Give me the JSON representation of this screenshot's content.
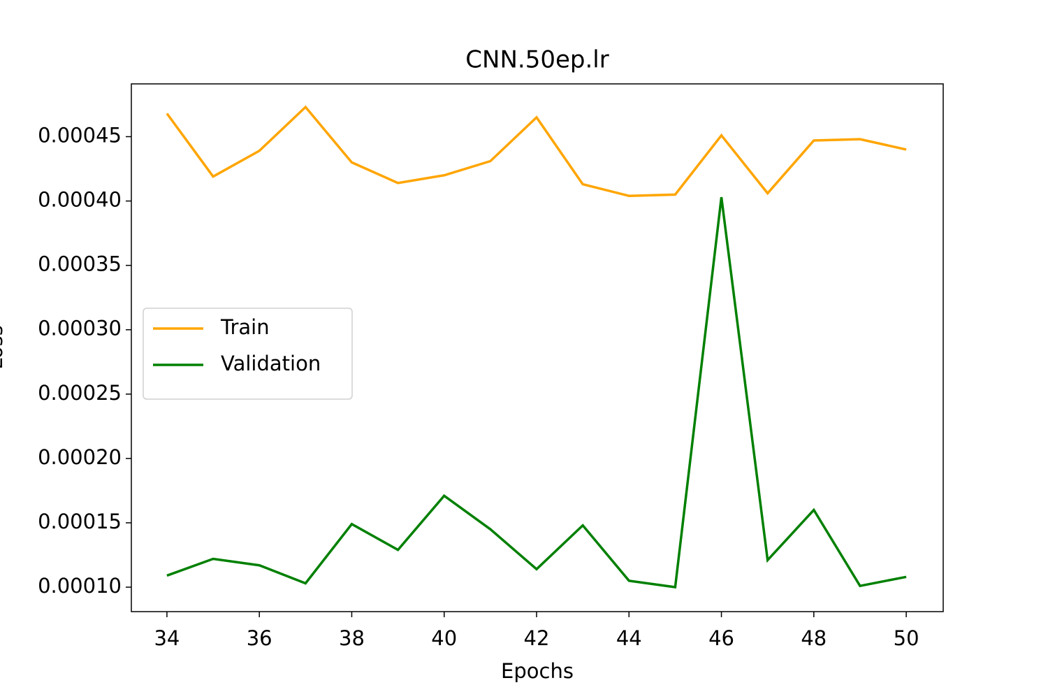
{
  "chart_data": {
    "type": "line",
    "title": "CNN.50ep.lr",
    "x_label": "Epochs",
    "y_label": "Loss",
    "x": [
      34,
      35,
      36,
      37,
      38,
      39,
      40,
      41,
      42,
      43,
      44,
      45,
      46,
      47,
      48,
      49,
      50
    ],
    "series": [
      {
        "name": "Train",
        "color": "#ffa500",
        "values": [
          0.000468,
          0.000419,
          0.000439,
          0.000473,
          0.00043,
          0.000414,
          0.00042,
          0.000431,
          0.000465,
          0.000413,
          0.000404,
          0.000405,
          0.000451,
          0.000406,
          0.000447,
          0.000448,
          0.00044
        ]
      },
      {
        "name": "Validation",
        "color": "#008000",
        "values": [
          0.000109,
          0.000122,
          0.000117,
          0.000103,
          0.000149,
          0.000129,
          0.000171,
          0.000145,
          0.000114,
          0.000148,
          0.000105,
          0.0001,
          0.000403,
          0.000121,
          0.00016,
          0.000101,
          0.000108
        ]
      }
    ],
    "xlim": [
      33.23,
      50.8
    ],
    "xticks": [
      34,
      36,
      38,
      40,
      42,
      44,
      46,
      48,
      50
    ],
    "ylim": [
      8.1e-05,
      0.000491
    ],
    "yticks": [
      {
        "value": 0.0001,
        "label": "0.00010"
      },
      0.00015,
      {
        "value": 0.0002,
        "label": "0.00020"
      },
      0.00025,
      {
        "value": 0.0003,
        "label": "0.00030"
      },
      0.00035,
      {
        "value": 0.0004,
        "label": "0.00040"
      },
      0.00045
    ],
    "legend": "center left",
    "grid": false
  }
}
